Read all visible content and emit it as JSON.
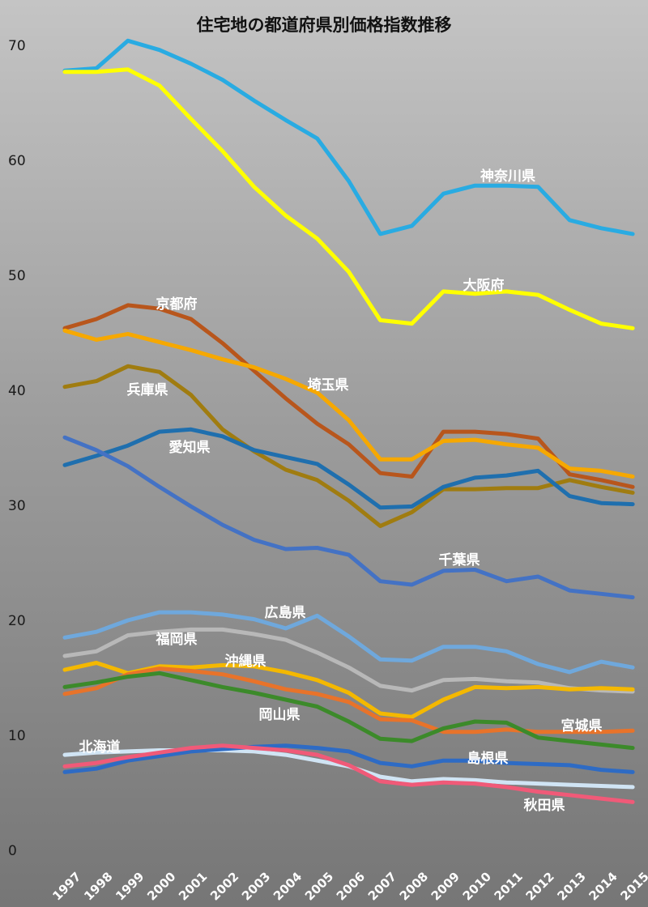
{
  "chart_data": {
    "type": "line",
    "title": "住宅地の都道府県別価格指数推移",
    "xlabel": "",
    "ylabel": "",
    "ylim": [
      0,
      72
    ],
    "yticks": [
      0,
      10,
      20,
      30,
      40,
      50,
      60,
      70
    ],
    "grid": false,
    "legend": "none (series labeled inline)",
    "categories": [
      "1997",
      "1998",
      "1999",
      "2000",
      "2001",
      "2002",
      "2003",
      "2004",
      "2005",
      "2006",
      "2007",
      "2008",
      "2009",
      "2010",
      "2011",
      "2012",
      "2013",
      "2014",
      "2015"
    ],
    "series": [
      {
        "name": "神奈川県",
        "color": "#29abe2",
        "values": [
          67.8,
          68.0,
          70.4,
          69.6,
          68.4,
          67.0,
          65.2,
          63.5,
          61.9,
          58.2,
          53.6,
          54.3,
          57.1,
          57.8,
          57.8,
          57.7,
          54.8,
          54.1,
          53.6
        ]
      },
      {
        "name": "大阪府",
        "color": "#ffff00",
        "values": [
          67.7,
          67.7,
          67.9,
          66.5,
          63.6,
          60.8,
          57.7,
          55.2,
          53.2,
          50.3,
          46.1,
          45.8,
          48.6,
          48.4,
          48.6,
          48.3,
          47.0,
          45.8,
          45.4
        ]
      },
      {
        "name": "京都府",
        "color": "#b8561c",
        "values": [
          45.4,
          46.2,
          47.4,
          47.1,
          46.2,
          44.1,
          41.7,
          39.3,
          37.1,
          35.3,
          32.8,
          32.5,
          36.4,
          36.4,
          36.2,
          35.8,
          32.7,
          32.2,
          31.6
        ]
      },
      {
        "name": "埼玉県",
        "color": "#f6a800",
        "values": [
          45.2,
          44.4,
          44.9,
          44.2,
          43.5,
          42.7,
          42.0,
          41.0,
          39.8,
          37.4,
          34.0,
          34.0,
          35.6,
          35.7,
          35.3,
          35.0,
          33.2,
          33.0,
          32.5
        ]
      },
      {
        "name": "兵庫県",
        "color": "#a07c10",
        "values": [
          40.3,
          40.8,
          42.1,
          41.6,
          39.6,
          36.6,
          34.7,
          33.1,
          32.2,
          30.4,
          28.2,
          29.4,
          31.4,
          31.4,
          31.5,
          31.5,
          32.2,
          31.6,
          31.1
        ]
      },
      {
        "name": "愛知県",
        "color": "#1f6fae",
        "values": [
          33.5,
          34.3,
          35.2,
          36.4,
          36.6,
          36.0,
          34.8,
          34.2,
          33.6,
          31.8,
          29.8,
          29.9,
          31.6,
          32.4,
          32.6,
          33.0,
          30.8,
          30.2,
          30.1
        ]
      },
      {
        "name": "千葉県",
        "color": "#4472c4",
        "values": [
          35.9,
          34.8,
          33.4,
          31.6,
          29.9,
          28.3,
          27.0,
          26.2,
          26.3,
          25.7,
          23.4,
          23.1,
          24.3,
          24.4,
          23.4,
          23.8,
          22.6,
          22.3,
          22.0
        ]
      },
      {
        "name": "広島県",
        "color": "#6fa8dc",
        "values": [
          18.5,
          19.0,
          20.0,
          20.7,
          20.7,
          20.5,
          20.1,
          19.3,
          20.4,
          18.6,
          16.6,
          16.5,
          17.7,
          17.7,
          17.3,
          16.2,
          15.5,
          16.4,
          15.9
        ]
      },
      {
        "name": "福岡県",
        "color": "#b8b8b8",
        "values": [
          16.9,
          17.3,
          18.7,
          19.0,
          19.2,
          19.2,
          18.8,
          18.3,
          17.2,
          15.9,
          14.3,
          13.9,
          14.8,
          14.9,
          14.7,
          14.6,
          14.1,
          13.9,
          13.8
        ]
      },
      {
        "name": "沖縄県",
        "color": "#f4b800",
        "values": [
          15.7,
          16.3,
          15.4,
          16.0,
          15.9,
          16.1,
          16.0,
          15.5,
          14.8,
          13.7,
          11.9,
          11.6,
          13.1,
          14.2,
          14.1,
          14.2,
          14.0,
          14.1,
          14.0
        ]
      },
      {
        "name": "宮城県",
        "color": "#e8732a",
        "values": [
          13.6,
          14.1,
          15.3,
          15.8,
          15.6,
          15.3,
          14.7,
          14.0,
          13.6,
          12.9,
          11.4,
          11.3,
          10.3,
          10.3,
          10.5,
          10.3,
          10.3,
          10.3,
          10.4
        ]
      },
      {
        "name": "岡山県",
        "color": "#3c8a2a",
        "values": [
          14.2,
          14.6,
          15.1,
          15.4,
          14.8,
          14.2,
          13.7,
          13.1,
          12.5,
          11.2,
          9.7,
          9.5,
          10.6,
          11.2,
          11.1,
          9.8,
          9.5,
          9.2,
          8.9
        ]
      },
      {
        "name": "北海道",
        "color": "#d0e4f4",
        "values": [
          8.3,
          8.5,
          8.6,
          8.7,
          8.7,
          8.7,
          8.6,
          8.3,
          7.8,
          7.3,
          6.4,
          6.0,
          6.2,
          6.1,
          5.9,
          5.8,
          5.7,
          5.6,
          5.5
        ]
      },
      {
        "name": "島根県",
        "color": "#2e6bc4",
        "values": [
          6.8,
          7.1,
          7.8,
          8.2,
          8.6,
          8.8,
          9.0,
          9.1,
          8.9,
          8.6,
          7.6,
          7.3,
          7.8,
          7.8,
          7.6,
          7.5,
          7.4,
          7.0,
          6.8
        ]
      },
      {
        "name": "秋田県",
        "color": "#f05a78",
        "values": [
          7.3,
          7.6,
          8.1,
          8.5,
          8.9,
          9.1,
          8.9,
          8.7,
          8.3,
          7.4,
          6.0,
          5.7,
          5.9,
          5.8,
          5.5,
          5.1,
          4.8,
          4.5,
          4.2
        ]
      }
    ]
  }
}
